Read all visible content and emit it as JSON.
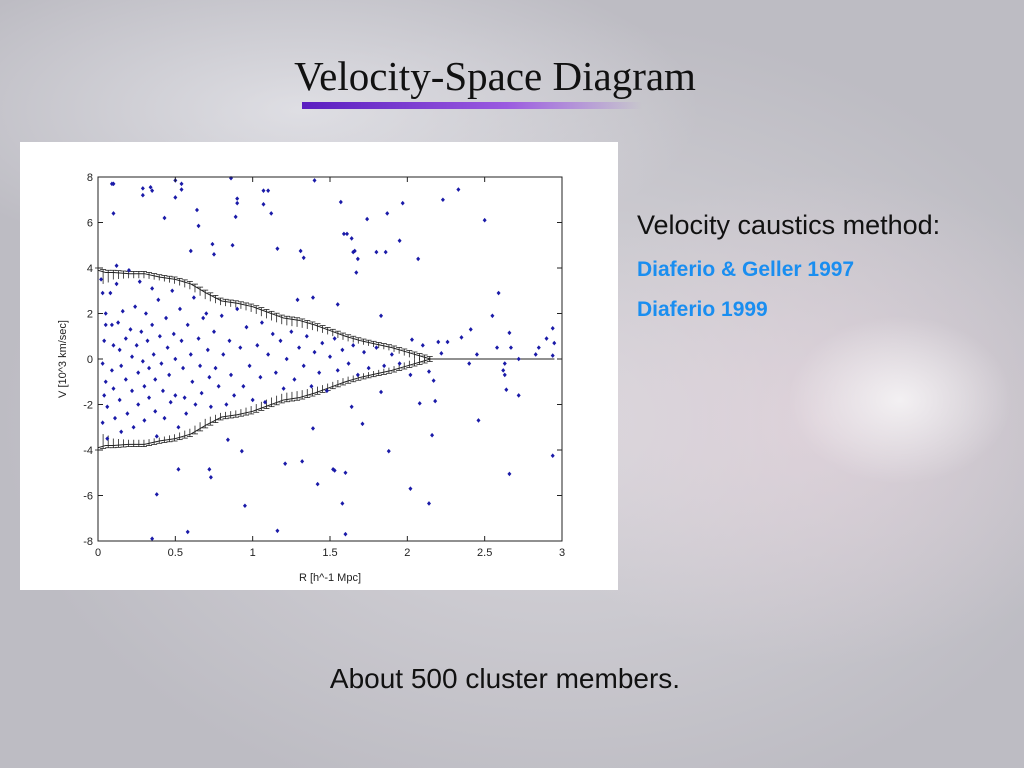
{
  "slide": {
    "title": "Velocity-Space Diagram",
    "heading": "Velocity caustics method:",
    "references": [
      "Diaferio & Geller 1997",
      "Diaferio 1999"
    ],
    "footer": "About 500 cluster members."
  },
  "colors": {
    "points": "#1a1aa8",
    "reference": "#1a8ef0",
    "title_underline": "#6a2ad0"
  },
  "chart_data": {
    "type": "scatter",
    "title": "",
    "xlabel": "R [h^-1 Mpc]",
    "ylabel": "V [10^3 km/sec]",
    "xlim": [
      0,
      3
    ],
    "ylim": [
      -8,
      8
    ],
    "xticks": [
      "0",
      "0.5",
      "1",
      "1.5",
      "2",
      "2.5",
      "3"
    ],
    "yticks": [
      "-8",
      "-6",
      "-4",
      "-2",
      "0",
      "2",
      "4",
      "6",
      "8"
    ],
    "caustic": {
      "r": [
        0,
        0.05,
        0.1,
        0.2,
        0.3,
        0.4,
        0.5,
        0.6,
        0.7,
        0.8,
        0.9,
        1.0,
        1.1,
        1.2,
        1.3,
        1.4,
        1.5,
        1.6,
        1.7,
        1.8,
        1.9,
        2.0,
        2.1,
        2.15,
        2.95
      ],
      "amplitude": [
        3.9,
        3.8,
        3.8,
        3.75,
        3.75,
        3.6,
        3.5,
        3.3,
        2.9,
        2.55,
        2.45,
        2.3,
        2.05,
        1.8,
        1.7,
        1.5,
        1.25,
        1.0,
        0.8,
        0.65,
        0.5,
        0.3,
        0.1,
        0,
        0
      ],
      "error": [
        0.6,
        0.5,
        0.3,
        0.2,
        0.2,
        0.15,
        0.2,
        0.25,
        0.3,
        0.2,
        0.2,
        0.25,
        0.3,
        0.3,
        0.3,
        0.25,
        0.2,
        0.2,
        0.15,
        0.15,
        0.15,
        0.2,
        0.2,
        0.1,
        0
      ]
    },
    "points": [
      [
        0.09,
        7.7
      ],
      [
        0.1,
        7.7
      ],
      [
        0.1,
        6.4
      ],
      [
        0.29,
        7.5
      ],
      [
        0.29,
        7.2
      ],
      [
        0.34,
        7.55
      ],
      [
        0.35,
        7.4
      ],
      [
        0.43,
        6.2
      ],
      [
        0.5,
        7.85
      ],
      [
        0.5,
        7.1
      ],
      [
        0.54,
        7.7
      ],
      [
        0.54,
        7.45
      ],
      [
        0.64,
        6.55
      ],
      [
        0.65,
        5.85
      ],
      [
        0.6,
        4.75
      ],
      [
        0.74,
        5.05
      ],
      [
        0.75,
        4.6
      ],
      [
        0.86,
        7.95
      ],
      [
        0.87,
        5.0
      ],
      [
        0.89,
        6.25
      ],
      [
        0.9,
        6.85
      ],
      [
        0.9,
        7.05
      ],
      [
        1.07,
        7.4
      ],
      [
        1.1,
        7.4
      ],
      [
        1.07,
        6.8
      ],
      [
        1.12,
        6.4
      ],
      [
        1.16,
        4.85
      ],
      [
        1.31,
        4.75
      ],
      [
        1.33,
        4.45
      ],
      [
        1.4,
        7.85
      ],
      [
        1.57,
        6.9
      ],
      [
        1.59,
        5.5
      ],
      [
        1.61,
        5.5
      ],
      [
        1.64,
        5.3
      ],
      [
        1.65,
        4.7
      ],
      [
        1.66,
        4.75
      ],
      [
        1.68,
        4.4
      ],
      [
        1.67,
        3.8
      ],
      [
        1.74,
        6.15
      ],
      [
        1.8,
        4.7
      ],
      [
        1.86,
        4.7
      ],
      [
        1.87,
        6.4
      ],
      [
        1.95,
        5.2
      ],
      [
        1.97,
        6.85
      ],
      [
        2.07,
        4.4
      ],
      [
        2.23,
        7.0
      ],
      [
        2.33,
        7.45
      ],
      [
        2.5,
        6.1
      ],
      [
        2.59,
        2.9
      ],
      [
        2.55,
        1.9
      ],
      [
        2.41,
        1.3
      ],
      [
        2.35,
        0.95
      ],
      [
        2.45,
        0.2
      ],
      [
        2.58,
        0.5
      ],
      [
        2.66,
        1.15
      ],
      [
        2.67,
        0.5
      ],
      [
        2.72,
        0
      ],
      [
        2.83,
        0.2
      ],
      [
        2.85,
        0.5
      ],
      [
        2.9,
        0.9
      ],
      [
        2.94,
        1.35
      ],
      [
        2.95,
        0.7
      ],
      [
        2.94,
        0.15
      ],
      [
        2.4,
        -0.2
      ],
      [
        2.62,
        -0.5
      ],
      [
        2.63,
        -0.2
      ],
      [
        2.63,
        -0.7
      ],
      [
        2.64,
        -1.35
      ],
      [
        2.72,
        -1.6
      ],
      [
        2.46,
        -2.7
      ],
      [
        2.94,
        -4.25
      ],
      [
        2.66,
        -5.05
      ],
      [
        2.14,
        -6.35
      ],
      [
        2.02,
        -5.7
      ],
      [
        2.16,
        -3.35
      ],
      [
        2.08,
        -1.95
      ],
      [
        2.18,
        -1.85
      ],
      [
        2.17,
        -0.95
      ],
      [
        2.14,
        -0.55
      ],
      [
        2.02,
        -0.7
      ],
      [
        1.88,
        -4.05
      ],
      [
        1.83,
        -1.45
      ],
      [
        1.71,
        -2.85
      ],
      [
        1.64,
        -2.1
      ],
      [
        1.6,
        -5.0
      ],
      [
        1.6,
        -7.7
      ],
      [
        1.58,
        -6.35
      ],
      [
        1.52,
        -4.85
      ],
      [
        1.53,
        -4.9
      ],
      [
        1.42,
        -5.5
      ],
      [
        1.39,
        -3.05
      ],
      [
        1.32,
        -4.5
      ],
      [
        1.21,
        -4.6
      ],
      [
        1.16,
        -7.55
      ],
      [
        0.95,
        -6.45
      ],
      [
        0.93,
        -4.05
      ],
      [
        0.84,
        -3.55
      ],
      [
        0.72,
        -4.85
      ],
      [
        0.73,
        -5.2
      ],
      [
        0.52,
        -4.85
      ],
      [
        0.38,
        -5.95
      ],
      [
        0.35,
        -7.9
      ],
      [
        0.58,
        -7.6
      ],
      [
        2.03,
        0.85
      ],
      [
        2.1,
        0.6
      ],
      [
        2.2,
        0.75
      ],
      [
        2.22,
        0.25
      ],
      [
        2.26,
        0.75
      ],
      [
        1.83,
        1.9
      ],
      [
        1.39,
        2.7
      ],
      [
        1.55,
        2.4
      ],
      [
        1.29,
        2.6
      ],
      [
        0.02,
        3.5
      ],
      [
        0.03,
        2.9
      ],
      [
        0.05,
        2.0
      ],
      [
        0.05,
        1.5
      ],
      [
        0.04,
        0.8
      ],
      [
        0.03,
        -0.2
      ],
      [
        0.05,
        -1.0
      ],
      [
        0.04,
        -1.6
      ],
      [
        0.06,
        -2.1
      ],
      [
        0.03,
        -2.8
      ],
      [
        0.06,
        -3.5
      ],
      [
        0.08,
        2.9
      ],
      [
        0.09,
        1.5
      ],
      [
        0.1,
        0.6
      ],
      [
        0.09,
        -0.5
      ],
      [
        0.1,
        -1.3
      ],
      [
        0.11,
        -2.6
      ],
      [
        0.12,
        4.1
      ],
      [
        0.12,
        3.3
      ],
      [
        0.13,
        1.6
      ],
      [
        0.14,
        0.4
      ],
      [
        0.15,
        -0.3
      ],
      [
        0.14,
        -1.8
      ],
      [
        0.15,
        -3.2
      ],
      [
        0.16,
        2.1
      ],
      [
        0.18,
        0.9
      ],
      [
        0.18,
        -0.9
      ],
      [
        0.19,
        -2.4
      ],
      [
        0.2,
        3.9
      ],
      [
        0.21,
        1.3
      ],
      [
        0.22,
        0.1
      ],
      [
        0.22,
        -1.4
      ],
      [
        0.23,
        -3.0
      ],
      [
        0.24,
        2.3
      ],
      [
        0.25,
        0.6
      ],
      [
        0.26,
        -0.6
      ],
      [
        0.26,
        -2.0
      ],
      [
        0.27,
        3.4
      ],
      [
        0.28,
        1.2
      ],
      [
        0.29,
        -0.1
      ],
      [
        0.3,
        -1.2
      ],
      [
        0.3,
        -2.7
      ],
      [
        0.31,
        2.0
      ],
      [
        0.32,
        0.8
      ],
      [
        0.33,
        -0.4
      ],
      [
        0.33,
        -1.7
      ],
      [
        0.35,
        3.1
      ],
      [
        0.35,
        1.5
      ],
      [
        0.36,
        0.2
      ],
      [
        0.37,
        -0.9
      ],
      [
        0.37,
        -2.3
      ],
      [
        0.38,
        -3.4
      ],
      [
        0.39,
        2.6
      ],
      [
        0.4,
        1.0
      ],
      [
        0.41,
        -0.2
      ],
      [
        0.42,
        -1.4
      ],
      [
        0.43,
        -2.6
      ],
      [
        0.44,
        1.8
      ],
      [
        0.45,
        0.5
      ],
      [
        0.46,
        -0.7
      ],
      [
        0.47,
        -1.9
      ],
      [
        0.48,
        3.0
      ],
      [
        0.49,
        1.1
      ],
      [
        0.5,
        0.0
      ],
      [
        0.5,
        -1.6
      ],
      [
        0.52,
        -3.0
      ],
      [
        0.53,
        2.2
      ],
      [
        0.54,
        0.8
      ],
      [
        0.55,
        -0.4
      ],
      [
        0.56,
        -1.7
      ],
      [
        0.57,
        -2.4
      ],
      [
        0.58,
        1.5
      ],
      [
        0.6,
        0.2
      ],
      [
        0.61,
        -1.0
      ],
      [
        0.62,
        2.7
      ],
      [
        0.63,
        -2.0
      ],
      [
        0.65,
        0.9
      ],
      [
        0.66,
        -0.3
      ],
      [
        0.67,
        -1.5
      ],
      [
        0.68,
        1.8
      ],
      [
        0.7,
        2.0
      ],
      [
        0.71,
        0.4
      ],
      [
        0.72,
        -0.8
      ],
      [
        0.73,
        -2.1
      ],
      [
        0.75,
        1.2
      ],
      [
        0.76,
        -0.4
      ],
      [
        0.78,
        -1.2
      ],
      [
        0.8,
        1.9
      ],
      [
        0.81,
        0.2
      ],
      [
        0.83,
        -2.0
      ],
      [
        0.85,
        0.8
      ],
      [
        0.86,
        -0.7
      ],
      [
        0.88,
        -1.6
      ],
      [
        0.9,
        2.2
      ],
      [
        0.92,
        0.5
      ],
      [
        0.94,
        -1.2
      ],
      [
        0.96,
        1.4
      ],
      [
        0.98,
        -0.3
      ],
      [
        1.0,
        -1.8
      ],
      [
        1.03,
        0.6
      ],
      [
        1.05,
        -0.8
      ],
      [
        1.06,
        1.6
      ],
      [
        1.08,
        -1.9
      ],
      [
        1.1,
        0.2
      ],
      [
        1.13,
        1.1
      ],
      [
        1.15,
        -0.6
      ],
      [
        1.18,
        0.8
      ],
      [
        1.2,
        -1.3
      ],
      [
        1.22,
        0.0
      ],
      [
        1.25,
        1.2
      ],
      [
        1.27,
        -0.9
      ],
      [
        1.3,
        0.5
      ],
      [
        1.33,
        -0.3
      ],
      [
        1.35,
        1.0
      ],
      [
        1.38,
        -1.2
      ],
      [
        1.4,
        0.3
      ],
      [
        1.43,
        -0.6
      ],
      [
        1.45,
        0.7
      ],
      [
        1.48,
        -1.4
      ],
      [
        1.5,
        0.1
      ],
      [
        1.53,
        0.9
      ],
      [
        1.55,
        -0.5
      ],
      [
        1.58,
        0.4
      ],
      [
        1.62,
        -0.2
      ],
      [
        1.65,
        0.6
      ],
      [
        1.68,
        -0.7
      ],
      [
        1.72,
        0.3
      ],
      [
        1.75,
        -0.4
      ],
      [
        1.8,
        0.5
      ],
      [
        1.85,
        -0.3
      ],
      [
        1.9,
        0.2
      ],
      [
        1.95,
        -0.2
      ]
    ]
  }
}
